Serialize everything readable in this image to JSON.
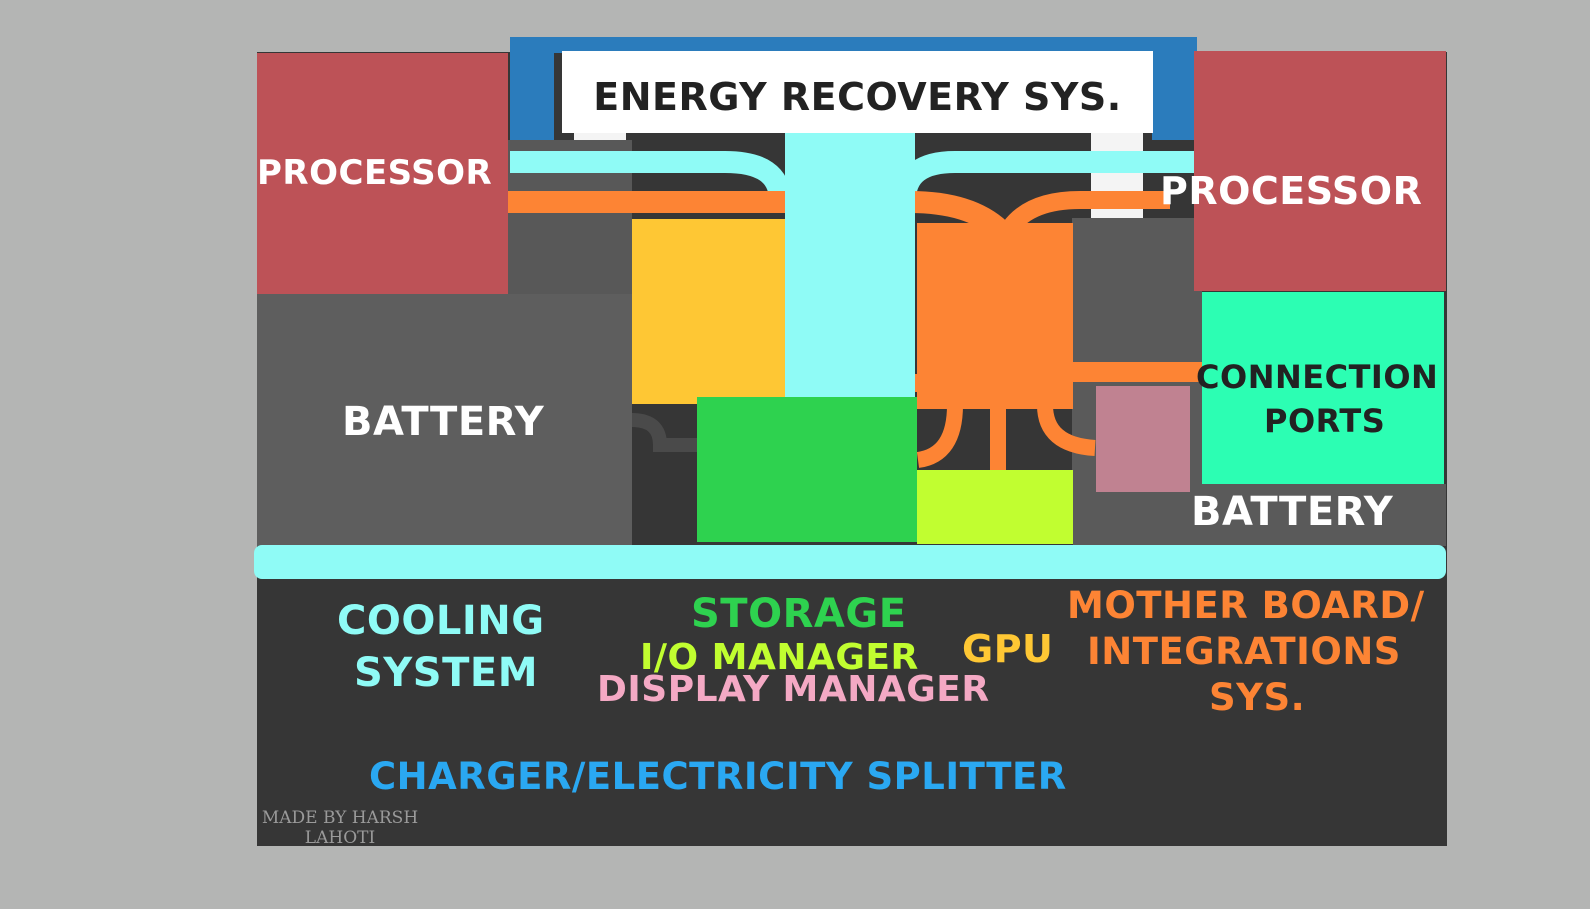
{
  "header": {
    "title": "ENERGY RECOVERY SYS."
  },
  "components": {
    "processor_left": "PROCESSOR",
    "processor_right": "PROCESSOR",
    "battery_left": "BATTERY",
    "battery_right": "BATTERY",
    "connection_ports_line1": "CONNECTION",
    "connection_ports_line2": "PORTS"
  },
  "legend": {
    "cooling_line1": "COOLING",
    "cooling_line2": "SYSTEM",
    "storage": "STORAGE",
    "io_manager": "I/O MANAGER",
    "gpu": "GPU",
    "display_manager": "DISPLAY MANAGER",
    "motherboard_line1": "MOTHER BOARD/",
    "motherboard_line2": "INTEGRATIONS",
    "motherboard_line3": "SYS.",
    "charger": "CHARGER/ELECTRICITY SPLITTER"
  },
  "credit": {
    "line1": "MADE BY HARSH",
    "line2": "LAHOTI"
  },
  "colors": {
    "background": "#b4b5b4",
    "chassis": "#363636",
    "frame_blue": "#2b7cbc",
    "processor": "#bd5257",
    "battery": "#5e5e5e",
    "cooling": "#8ffbf6",
    "io_manager_block": "#fec734",
    "motherboard": "#fd8434",
    "storage": "#2ed24f",
    "gpu": "#c1fe30",
    "display_manager": "#c08291",
    "connection_ports": "#2cfeb3",
    "charger_text": "#2aa8f2"
  }
}
